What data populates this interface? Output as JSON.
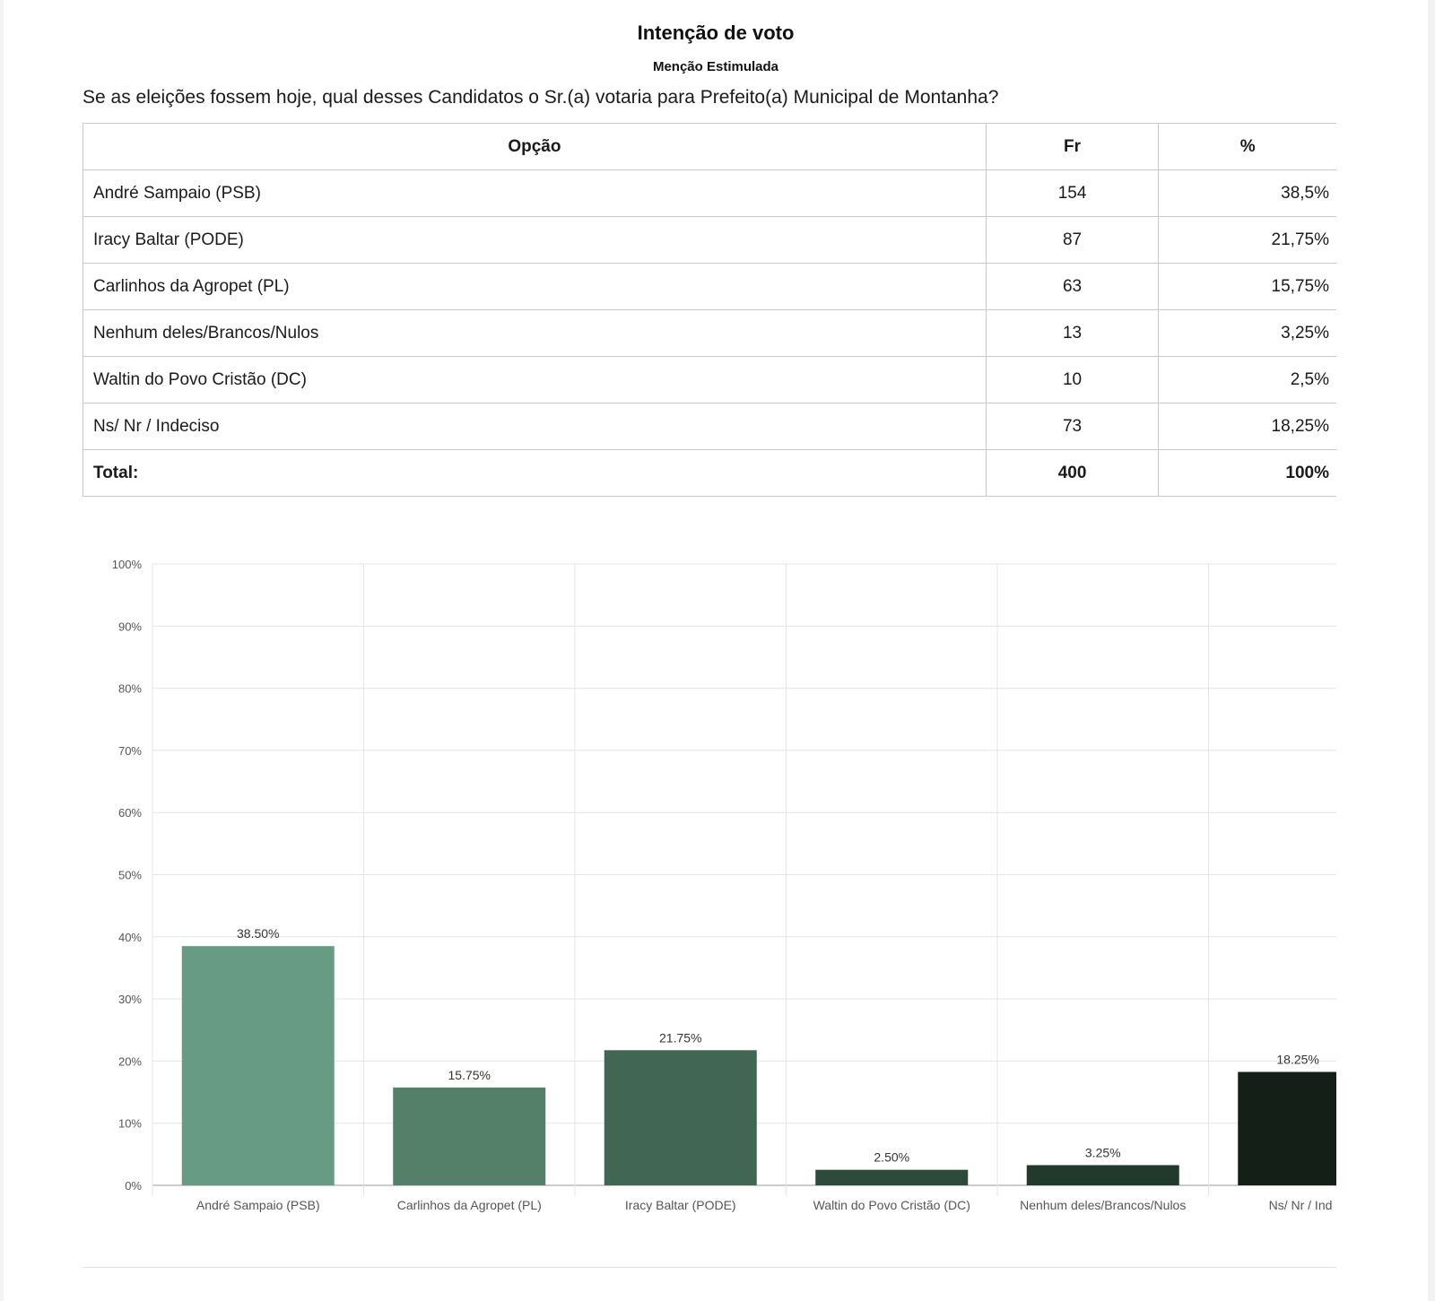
{
  "header": {
    "title": "Intenção de voto",
    "subtitle": "Menção Estimulada",
    "question": "Se as eleições fossem hoje, qual desses Candidatos o Sr.(a) votaria para Prefeito(a) Municipal de Montanha?"
  },
  "table": {
    "headers": [
      "Opção",
      "Fr",
      "%"
    ],
    "rows": [
      {
        "option": "André Sampaio (PSB)",
        "fr": "154",
        "pct": "38,5%"
      },
      {
        "option": "Iracy Baltar (PODE)",
        "fr": "87",
        "pct": "21,75%"
      },
      {
        "option": "Carlinhos da Agropet (PL)",
        "fr": "63",
        "pct": "15,75%"
      },
      {
        "option": "Nenhum deles/Brancos/Nulos",
        "fr": "13",
        "pct": "3,25%"
      },
      {
        "option": "Waltin do Povo Cristão (DC)",
        "fr": "10",
        "pct": "2,5%"
      },
      {
        "option": "Ns/ Nr / Indeciso",
        "fr": "73",
        "pct": "18,25%"
      }
    ],
    "total": {
      "label": "Total:",
      "fr": "400",
      "pct": "100%"
    }
  },
  "chart_data": {
    "type": "bar",
    "categories": [
      "André Sampaio (PSB)",
      "Carlinhos da Agropet (PL)",
      "Iracy Baltar (PODE)",
      "Waltin do Povo Cristão (DC)",
      "Nenhum deles/Brancos/Nulos",
      "Ns/ Nr / Ind"
    ],
    "values": [
      38.5,
      15.75,
      21.75,
      2.5,
      3.25,
      18.25
    ],
    "data_labels": [
      "38.50%",
      "15.75%",
      "21.75%",
      "2.50%",
      "3.25%",
      "18.25%"
    ],
    "colors": [
      "#679b83",
      "#548069",
      "#426654",
      "#2d4a3a",
      "#223a2c",
      "#131f17"
    ],
    "ylim": [
      0,
      100
    ],
    "yticks": [
      "0%",
      "10%",
      "20%",
      "30%",
      "40%",
      "50%",
      "60%",
      "70%",
      "80%",
      "90%",
      "100%"
    ],
    "grid": true,
    "xlabel": "",
    "ylabel": ""
  }
}
